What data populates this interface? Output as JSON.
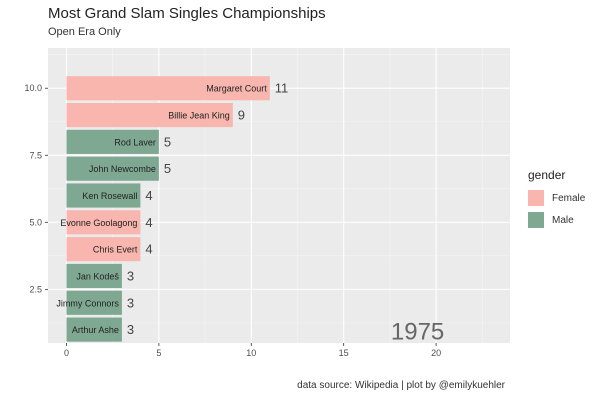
{
  "chart_data": {
    "type": "bar",
    "orientation": "horizontal",
    "title": "Most Grand Slam Singles Championships",
    "subtitle": "Open Era Only",
    "caption": "data source: Wikipedia | plot by @emilykuehler",
    "frame_label": "1975",
    "xlim": [
      -1,
      24
    ],
    "ylim": [
      0.5,
      11.5
    ],
    "x_ticks": [
      0,
      5,
      10,
      15,
      20
    ],
    "y_ticks": [
      2.5,
      5.0,
      7.5,
      10.0
    ],
    "y_tick_labels": [
      "2.5",
      "5.0",
      "7.5",
      "10.0"
    ],
    "grid": true,
    "legend_placement": "right",
    "legend": {
      "title": "gender",
      "entries": [
        {
          "label": "Female",
          "color": "#f8b6ae"
        },
        {
          "label": "Male",
          "color": "#7fa893"
        }
      ]
    },
    "bars": [
      {
        "rank": 10,
        "name": "Margaret Court",
        "value": 11,
        "label": "11",
        "gender": "Female"
      },
      {
        "rank": 9,
        "name": "Billie Jean King",
        "value": 9,
        "label": "9",
        "gender": "Female"
      },
      {
        "rank": 8,
        "name": "Rod Laver",
        "value": 5,
        "label": "5",
        "gender": "Male"
      },
      {
        "rank": 7,
        "name": "John Newcombe",
        "value": 5,
        "label": "5",
        "gender": "Male"
      },
      {
        "rank": 6,
        "name": "Ken Rosewall",
        "value": 4,
        "label": "4",
        "gender": "Male"
      },
      {
        "rank": 5,
        "name": "Evonne Goolagong",
        "value": 4,
        "label": "4",
        "gender": "Female"
      },
      {
        "rank": 4,
        "name": "Chris Evert",
        "value": 4,
        "label": "4",
        "gender": "Female"
      },
      {
        "rank": 3,
        "name": "Jan Kodeš",
        "value": 3,
        "label": "3",
        "gender": "Male"
      },
      {
        "rank": 2,
        "name": "Jimmy Connors",
        "value": 3,
        "label": "3",
        "gender": "Male"
      },
      {
        "rank": 1,
        "name": "Arthur Ashe",
        "value": 3,
        "label": "3",
        "gender": "Male"
      }
    ]
  }
}
